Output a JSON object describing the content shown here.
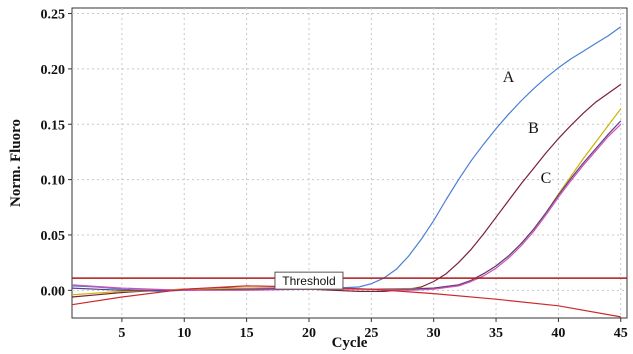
{
  "chart_data": {
    "type": "line",
    "xlabel": "Cycle",
    "ylabel": "Norm. Fluoro",
    "xlim": [
      1,
      45.5
    ],
    "ylim": [
      -0.025,
      0.255
    ],
    "xticks": [
      5,
      10,
      15,
      20,
      25,
      30,
      35,
      40,
      45
    ],
    "yticks": [
      0.0,
      0.05,
      0.1,
      0.15,
      0.2,
      0.25
    ],
    "ytick_labels": [
      "0.00",
      "0.05",
      "0.10",
      "0.15",
      "0.20",
      "0.25"
    ],
    "grid": true,
    "annotations": [
      {
        "text": "A",
        "x": 36,
        "y": 0.188
      },
      {
        "text": "B",
        "x": 38,
        "y": 0.142
      },
      {
        "text": "C",
        "x": 39,
        "y": 0.097
      }
    ],
    "threshold": {
      "label": "Threshold",
      "value": 0.011,
      "label_x": 20
    },
    "series": [
      {
        "color": "#4a7fd4",
        "x": [
          1,
          3,
          5,
          8,
          10,
          13,
          15,
          18,
          20,
          22,
          24,
          25,
          26,
          27,
          28,
          29,
          30,
          31,
          32,
          33,
          34,
          35,
          36,
          37,
          38,
          39,
          40,
          41,
          42,
          43,
          44,
          45
        ],
        "y": [
          0.004,
          0.003,
          0.001,
          -0.001,
          0.0,
          0.001,
          0.001,
          0.001,
          0.001,
          0.002,
          0.003,
          0.006,
          0.011,
          0.019,
          0.031,
          0.046,
          0.063,
          0.082,
          0.1,
          0.117,
          0.132,
          0.146,
          0.159,
          0.171,
          0.182,
          0.192,
          0.201,
          0.209,
          0.216,
          0.223,
          0.23,
          0.238
        ]
      },
      {
        "color": "#7a1f3a",
        "x": [
          1,
          3,
          5,
          8,
          10,
          13,
          15,
          18,
          20,
          22,
          24,
          26,
          28,
          29,
          30,
          31,
          32,
          33,
          34,
          35,
          36,
          37,
          38,
          39,
          40,
          41,
          42,
          43,
          44,
          45
        ],
        "y": [
          -0.006,
          -0.004,
          -0.002,
          0.0,
          0.001,
          0.002,
          0.002,
          0.002,
          0.001,
          0.0,
          -0.001,
          -0.001,
          0.001,
          0.003,
          0.008,
          0.015,
          0.025,
          0.037,
          0.051,
          0.066,
          0.081,
          0.096,
          0.11,
          0.124,
          0.137,
          0.149,
          0.16,
          0.17,
          0.178,
          0.186
        ]
      },
      {
        "color": "#c9b400",
        "x": [
          1,
          5,
          10,
          15,
          20,
          25,
          30,
          32,
          33,
          34,
          35,
          36,
          37,
          38,
          39,
          40,
          41,
          42,
          43,
          44,
          45
        ],
        "y": [
          -0.004,
          -0.001,
          0.001,
          0.002,
          0.001,
          0.001,
          0.002,
          0.005,
          0.009,
          0.015,
          0.022,
          0.031,
          0.042,
          0.055,
          0.07,
          0.087,
          0.103,
          0.119,
          0.134,
          0.149,
          0.164
        ]
      },
      {
        "color": "#5b3d8f",
        "x": [
          1,
          5,
          10,
          15,
          20,
          25,
          28,
          30,
          32,
          33,
          34,
          35,
          36,
          37,
          38,
          39,
          40,
          41,
          42,
          43,
          44,
          45
        ],
        "y": [
          0.002,
          0.0,
          0.0,
          0.001,
          0.002,
          0.001,
          0.001,
          0.002,
          0.005,
          0.009,
          0.015,
          0.022,
          0.031,
          0.042,
          0.055,
          0.07,
          0.086,
          0.101,
          0.115,
          0.128,
          0.141,
          0.153
        ]
      },
      {
        "color": "#d44fb0",
        "x": [
          1,
          5,
          10,
          15,
          20,
          25,
          28,
          30,
          32,
          33,
          34,
          35,
          36,
          37,
          38,
          39,
          40,
          41,
          42,
          43,
          44,
          45
        ],
        "y": [
          0.005,
          0.002,
          0.0,
          0.0,
          0.001,
          0.001,
          0.0,
          0.001,
          0.004,
          0.008,
          0.013,
          0.02,
          0.029,
          0.04,
          0.053,
          0.068,
          0.084,
          0.099,
          0.113,
          0.126,
          0.139,
          0.15
        ]
      },
      {
        "color": "#cc2a2a",
        "x": [
          1,
          5,
          10,
          15,
          20,
          25,
          30,
          35,
          40,
          45
        ],
        "y": [
          -0.013,
          -0.006,
          0.001,
          0.004,
          0.003,
          0.001,
          -0.003,
          -0.008,
          -0.014,
          -0.024
        ]
      }
    ]
  }
}
